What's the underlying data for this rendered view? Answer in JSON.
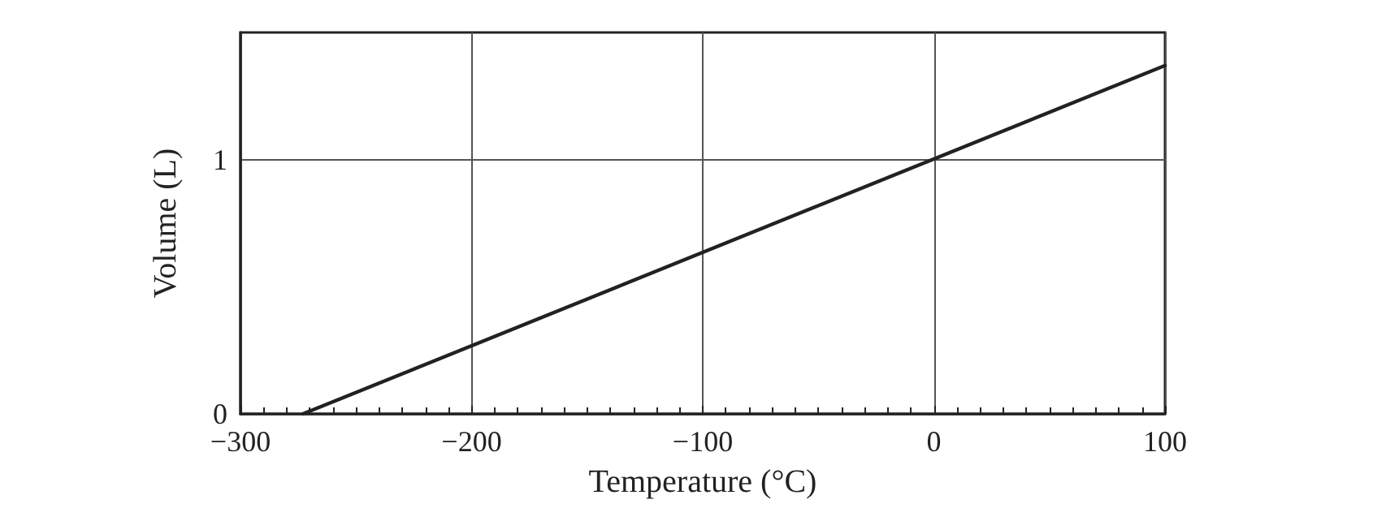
{
  "chart_data": {
    "type": "line",
    "xlabel": "Temperature (°C)",
    "ylabel": "Volume (L)",
    "x": [
      -273,
      100
    ],
    "series": [
      {
        "color": "#222222",
        "values": [
          0,
          1.37
        ]
      }
    ],
    "xlim": [
      -300,
      100
    ],
    "xticks": [
      -300,
      -200,
      -100,
      0,
      100
    ],
    "ylim": [
      0,
      1.5
    ],
    "yticks": [
      0,
      1
    ],
    "grid": true,
    "marker": "none",
    "line_style": "solid"
  }
}
